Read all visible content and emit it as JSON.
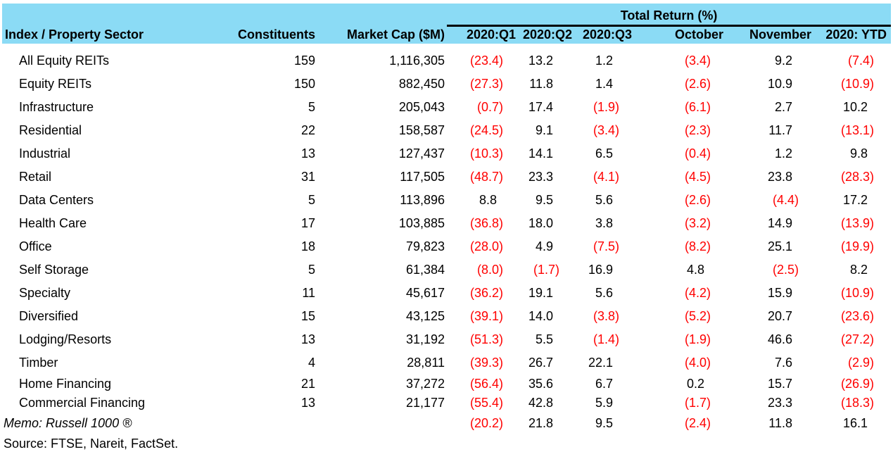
{
  "colors": {
    "header_bg": "#8BDBF5",
    "negative_value": "#FF0000",
    "text": "#000000"
  },
  "table": {
    "span_header": "Total Return (%)",
    "columns": [
      "Index / Property Sector",
      "Constituents",
      "Market Cap ($M)",
      "2020:Q1",
      "2020:Q2",
      "2020:Q3",
      "October",
      "November",
      "2020: YTD"
    ],
    "rows": [
      {
        "sector": "All Equity REITs",
        "constituents": "159",
        "market_cap": "1,116,305",
        "returns": [
          "(23.4)",
          "13.2",
          "1.2",
          "(3.4)",
          "9.2",
          "(7.4)"
        ]
      },
      {
        "sector": "Equity REITs",
        "constituents": "150",
        "market_cap": "882,450",
        "returns": [
          "(27.3)",
          "11.8",
          "1.4",
          "(2.6)",
          "10.9",
          "(10.9)"
        ]
      },
      {
        "sector": "Infrastructure",
        "constituents": "5",
        "market_cap": "205,043",
        "returns": [
          "(0.7)",
          "17.4",
          "(1.9)",
          "(6.1)",
          "2.7",
          "10.2"
        ]
      },
      {
        "sector": "Residential",
        "constituents": "22",
        "market_cap": "158,587",
        "returns": [
          "(24.5)",
          "9.1",
          "(3.4)",
          "(2.3)",
          "11.7",
          "(13.1)"
        ]
      },
      {
        "sector": "Industrial",
        "constituents": "13",
        "market_cap": "127,437",
        "returns": [
          "(10.3)",
          "14.1",
          "6.5",
          "(0.4)",
          "1.2",
          "9.8"
        ]
      },
      {
        "sector": "Retail",
        "constituents": "31",
        "market_cap": "117,505",
        "returns": [
          "(48.7)",
          "23.3",
          "(4.1)",
          "(4.5)",
          "23.8",
          "(28.3)"
        ]
      },
      {
        "sector": "Data Centers",
        "constituents": "5",
        "market_cap": "113,896",
        "returns": [
          "8.8",
          "9.5",
          "5.6",
          "(2.6)",
          "(4.4)",
          "17.2"
        ]
      },
      {
        "sector": "Health Care",
        "constituents": "17",
        "market_cap": "103,885",
        "returns": [
          "(36.8)",
          "18.0",
          "3.8",
          "(3.2)",
          "14.9",
          "(13.9)"
        ]
      },
      {
        "sector": "Office",
        "constituents": "18",
        "market_cap": "79,823",
        "returns": [
          "(28.0)",
          "4.9",
          "(7.5)",
          "(8.2)",
          "25.1",
          "(19.9)"
        ]
      },
      {
        "sector": "Self Storage",
        "constituents": "5",
        "market_cap": "61,384",
        "returns": [
          "(8.0)",
          "(1.7)",
          "16.9",
          "4.8",
          "(2.5)",
          "8.2"
        ]
      },
      {
        "sector": "Specialty",
        "constituents": "11",
        "market_cap": "45,617",
        "returns": [
          "(36.2)",
          "19.1",
          "5.6",
          "(4.2)",
          "15.9",
          "(10.9)"
        ]
      },
      {
        "sector": "Diversified",
        "constituents": "15",
        "market_cap": "43,125",
        "returns": [
          "(39.1)",
          "14.0",
          "(3.8)",
          "(5.2)",
          "20.7",
          "(23.6)"
        ]
      },
      {
        "sector": "Lodging/Resorts",
        "constituents": "13",
        "market_cap": "31,192",
        "returns": [
          "(51.3)",
          "5.5",
          "(1.4)",
          "(1.9)",
          "46.6",
          "(27.2)"
        ]
      },
      {
        "sector": "Timber",
        "constituents": "4",
        "market_cap": "28,811",
        "returns": [
          "(39.3)",
          "26.7",
          "22.1",
          "(4.0)",
          "7.6",
          "(2.9)"
        ]
      },
      {
        "sector": "Home Financing",
        "constituents": "21",
        "market_cap": "37,272",
        "returns": [
          "(56.4)",
          "35.6",
          "6.7",
          "0.2",
          "15.7",
          "(26.9)"
        ]
      },
      {
        "sector": "Commercial Financing",
        "constituents": "13",
        "market_cap": "21,177",
        "returns": [
          "(55.4)",
          "42.8",
          "5.9",
          "(1.7)",
          "23.3",
          "(18.3)"
        ]
      }
    ],
    "memo_row": {
      "sector": "Memo: Russell 1000 ®",
      "constituents": "",
      "market_cap": "",
      "returns": [
        "(20.2)",
        "21.8",
        "9.5",
        "(2.4)",
        "11.8",
        "16.1"
      ]
    },
    "source": "Source: FTSE, Nareit, FactSet."
  }
}
